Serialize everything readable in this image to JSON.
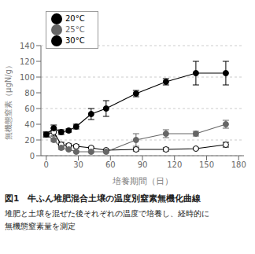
{
  "chart_data": {
    "type": "line",
    "xlabel": "培養期間（日）",
    "ylabel": "無機態窒素（μgN/g）",
    "annotations": [
      "図1　牛ふん堆肥混合土壌の温度別窒素無機化曲線",
      "堆肥と土壌を混ぜた後それぞれの温度で培養し、経時的に",
      "無機態窒素量を測定"
    ],
    "xlim": [
      -5,
      185
    ],
    "xticks": [
      0,
      30,
      60,
      90,
      120,
      150,
      180
    ],
    "ylim": [
      0,
      140
    ],
    "yticks": [
      0,
      20,
      40,
      60,
      80,
      100,
      120,
      140
    ],
    "grid": true,
    "legend": "upper left",
    "series": [
      {
        "name": "20°C",
        "color": "black",
        "marker": "hollow_circle",
        "x": [
          0,
          7,
          14,
          21,
          28,
          42,
          56,
          84,
          112,
          140,
          168
        ],
        "values": [
          27,
          30,
          14,
          13,
          12,
          10,
          7,
          8,
          8,
          9,
          14
        ],
        "yerr": [
          3,
          5,
          3,
          2,
          2,
          1,
          1,
          2,
          2,
          1,
          3
        ]
      },
      {
        "name": "25°C",
        "color": "#666666",
        "marker": "circle",
        "x": [
          0,
          7,
          14,
          21,
          28,
          42,
          56,
          84,
          112,
          140,
          168
        ],
        "values": [
          27,
          20,
          10,
          8,
          5,
          5,
          5,
          20,
          28,
          28,
          40
        ],
        "yerr": [
          3,
          2,
          2,
          1,
          1,
          1,
          1,
          8,
          5,
          3,
          5
        ]
      },
      {
        "name": "30°C",
        "color": "black",
        "marker": "circle",
        "x": [
          0,
          7,
          14,
          21,
          28,
          42,
          56,
          84,
          112,
          140,
          168
        ],
        "values": [
          27,
          35,
          30,
          32,
          37,
          53,
          60,
          79,
          94,
          105,
          105
        ],
        "yerr": [
          3,
          4,
          3,
          2,
          3,
          7,
          10,
          4,
          4,
          15,
          15
        ]
      }
    ]
  }
}
